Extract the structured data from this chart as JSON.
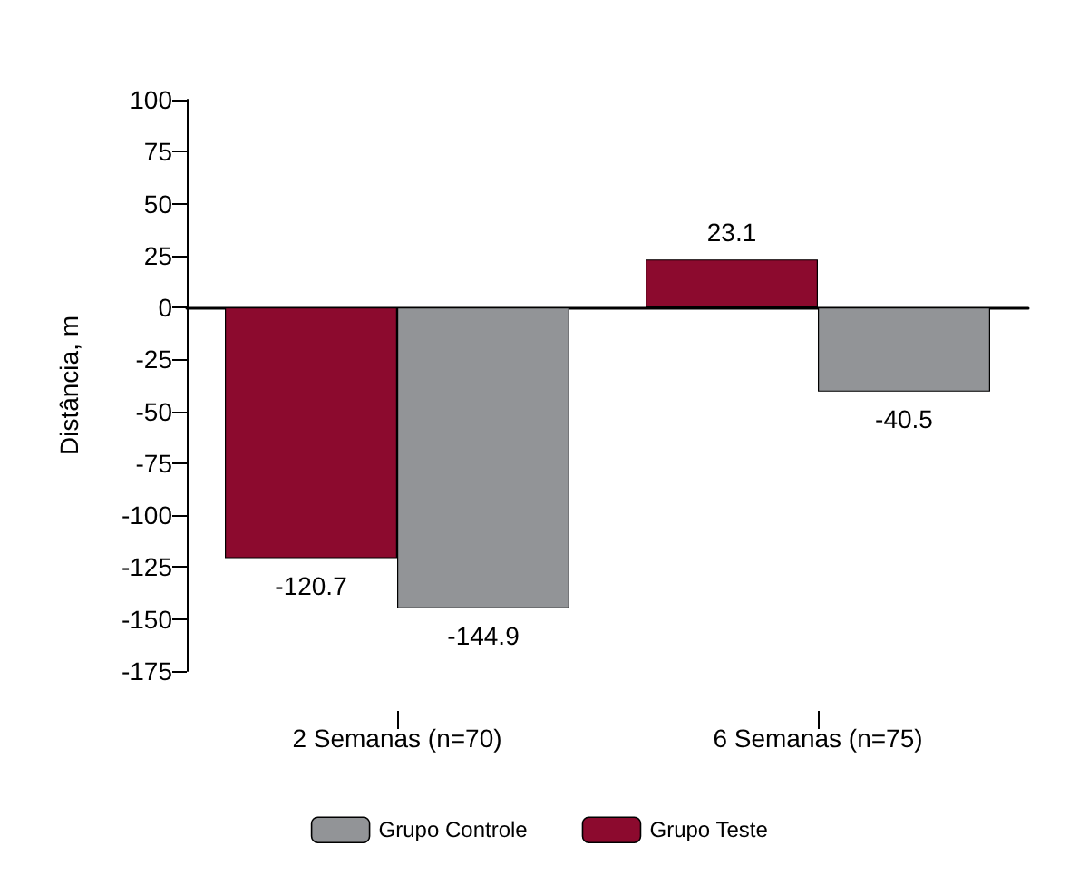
{
  "chart_data": {
    "type": "bar",
    "ylabel": "Distância, m",
    "categories": [
      "2 Semanas (n=70)",
      "6 Semanas (n=75)"
    ],
    "series": [
      {
        "name": "Grupo Teste",
        "color": "#8c0a2e",
        "values": [
          -120.7,
          23.1
        ]
      },
      {
        "name": "Grupo Controle",
        "color": "#929497",
        "values": [
          -144.9,
          -40.5
        ]
      }
    ],
    "ylim": [
      -175,
      100
    ],
    "yticks": [
      -175,
      -150,
      -125,
      -100,
      -75,
      -50,
      -25,
      0,
      25,
      50,
      75,
      100
    ],
    "legend": "bottom",
    "data_labels": true
  }
}
